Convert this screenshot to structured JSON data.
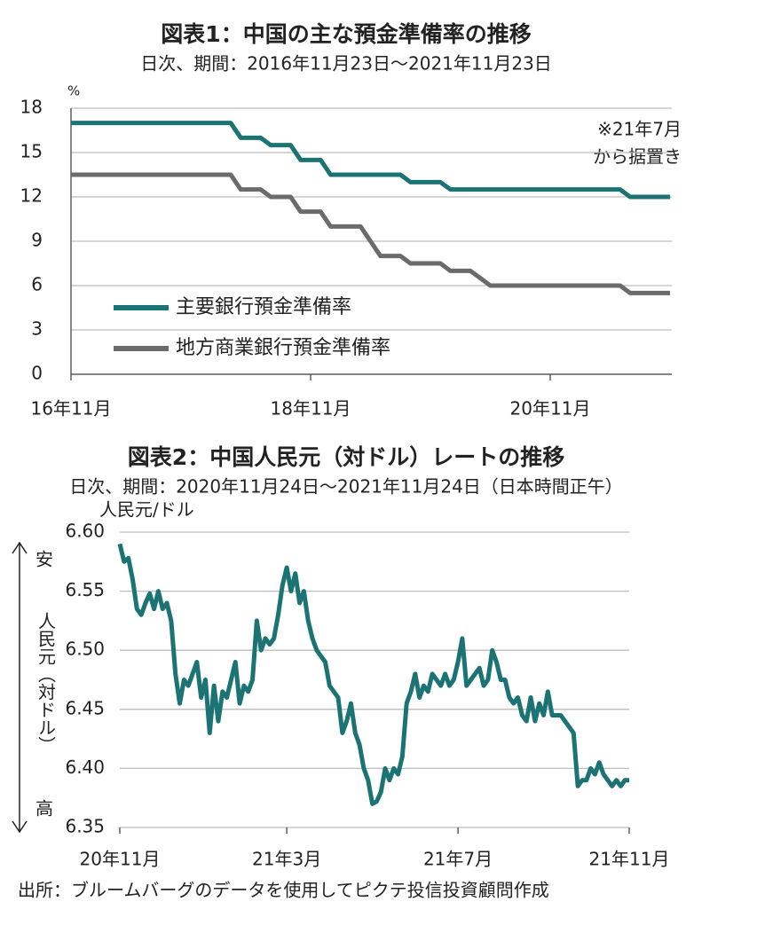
{
  "chart_data": [
    {
      "type": "line",
      "title": "図表1：中国の主な預金準備率の推移",
      "subtitle": "日次、期間：2016年11月23日～2021年11月23日",
      "unit": "%",
      "categories": [
        "16年11月",
        null,
        null,
        null,
        null,
        null,
        null,
        null,
        null,
        null,
        null,
        null,
        null,
        null,
        null,
        null,
        null,
        null,
        null,
        null,
        null,
        null,
        null,
        null,
        "18年11月",
        null,
        null,
        null,
        null,
        null,
        null,
        null,
        null,
        null,
        null,
        null,
        null,
        null,
        null,
        null,
        null,
        null,
        null,
        null,
        null,
        null,
        null,
        null,
        "20年11月",
        null,
        null,
        null,
        null,
        null,
        null,
        null,
        null,
        null,
        null,
        null,
        null
      ],
      "series": [
        {
          "name": "主要銀行預金準備率",
          "color": "#1b7373",
          "values": [
            17,
            17,
            17,
            17,
            17,
            17,
            17,
            17,
            17,
            17,
            17,
            17,
            17,
            17,
            17,
            17,
            17,
            16,
            16,
            16,
            15.5,
            15.5,
            15.5,
            14.5,
            14.5,
            14.5,
            13.5,
            13.5,
            13.5,
            13.5,
            13.5,
            13.5,
            13.5,
            13.5,
            13,
            13,
            13,
            13,
            12.5,
            12.5,
            12.5,
            12.5,
            12.5,
            12.5,
            12.5,
            12.5,
            12.5,
            12.5,
            12.5,
            12.5,
            12.5,
            12.5,
            12.5,
            12.5,
            12.5,
            12.5,
            12,
            12,
            12,
            12,
            12
          ]
        },
        {
          "name": "地方商業銀行預金準備率",
          "color": "#6b6b6b",
          "values": [
            13.5,
            13.5,
            13.5,
            13.5,
            13.5,
            13.5,
            13.5,
            13.5,
            13.5,
            13.5,
            13.5,
            13.5,
            13.5,
            13.5,
            13.5,
            13.5,
            13.5,
            12.5,
            12.5,
            12.5,
            12,
            12,
            12,
            11,
            11,
            11,
            10,
            10,
            10,
            10,
            9,
            8,
            8,
            8,
            7.5,
            7.5,
            7.5,
            7.5,
            7,
            7,
            7,
            6.5,
            6,
            6,
            6,
            6,
            6,
            6,
            6,
            6,
            6,
            6,
            6,
            6,
            6,
            6,
            5.5,
            5.5,
            5.5,
            5.5,
            5.5
          ]
        }
      ],
      "ylim": [
        0,
        18
      ],
      "yticks": [
        0,
        3,
        6,
        9,
        12,
        15,
        18
      ],
      "grid": true,
      "legend": "lower left",
      "annotation": [
        "※21年7月",
        "から据置き"
      ]
    },
    {
      "type": "line",
      "title": "図表2：中国人民元（対ドル）レートの推移",
      "subtitle": "日次、期間：2020年11月24日～2021年11月24日（日本時間正午）",
      "y_label": "人民元/ドル",
      "direction_labels": {
        "top": "安",
        "middle": "人民元（対ドル）",
        "bottom": "高"
      },
      "categories": [
        "20年11月",
        null,
        null,
        null,
        null,
        null,
        null,
        null,
        null,
        null,
        null,
        null,
        null,
        null,
        null,
        null,
        null,
        null,
        null,
        null,
        null,
        null,
        null,
        null,
        null,
        null,
        null,
        null,
        null,
        null,
        null,
        null,
        null,
        null,
        null,
        null,
        null,
        null,
        null,
        "21年3月",
        null,
        null,
        null,
        null,
        null,
        null,
        null,
        null,
        null,
        null,
        null,
        null,
        null,
        null,
        null,
        null,
        null,
        null,
        null,
        null,
        null,
        null,
        null,
        null,
        null,
        null,
        null,
        null,
        null,
        null,
        null,
        null,
        null,
        null,
        null,
        null,
        null,
        null,
        null,
        "21年7月",
        null,
        null,
        null,
        null,
        null,
        null,
        null,
        null,
        null,
        null,
        null,
        null,
        null,
        null,
        null,
        null,
        null,
        null,
        null,
        null,
        null,
        null,
        null,
        null,
        null,
        null,
        null,
        null,
        null,
        null,
        null,
        null,
        null,
        null,
        null,
        null,
        null,
        null,
        null,
        "21年11月"
      ],
      "series": [
        {
          "name": "人民元/ドル",
          "color": "#1b7373",
          "values": [
            6.59,
            6.575,
            6.578,
            6.56,
            6.535,
            6.53,
            6.54,
            6.548,
            6.535,
            6.55,
            6.535,
            6.54,
            6.525,
            6.48,
            6.455,
            6.475,
            6.47,
            6.48,
            6.49,
            6.46,
            6.475,
            6.43,
            6.47,
            6.44,
            6.465,
            6.46,
            6.475,
            6.49,
            6.455,
            6.47,
            6.465,
            6.475,
            6.525,
            6.5,
            6.51,
            6.505,
            6.51,
            6.53,
            6.555,
            6.57,
            6.55,
            6.565,
            6.54,
            6.55,
            6.525,
            6.51,
            6.5,
            6.495,
            6.49,
            6.47,
            6.465,
            6.46,
            6.43,
            6.44,
            6.455,
            6.43,
            6.42,
            6.4,
            6.39,
            6.37,
            6.372,
            6.38,
            6.4,
            6.39,
            6.4,
            6.395,
            6.41,
            6.455,
            6.465,
            6.48,
            6.46,
            6.47,
            6.465,
            6.48,
            6.475,
            6.47,
            6.48,
            6.47,
            6.475,
            6.49,
            6.51,
            6.47,
            6.475,
            6.48,
            6.485,
            6.47,
            6.475,
            6.5,
            6.49,
            6.475,
            6.475,
            6.46,
            6.455,
            6.46,
            6.445,
            6.44,
            6.46,
            6.44,
            6.455,
            6.445,
            6.465,
            6.445,
            6.445,
            6.445,
            6.44,
            6.435,
            6.43,
            6.385,
            6.39,
            6.39,
            6.4,
            6.395,
            6.405,
            6.395,
            6.39,
            6.385,
            6.39,
            6.385,
            6.39,
            6.39
          ]
        }
      ],
      "ylim": [
        6.35,
        6.6
      ],
      "yticks": [
        6.35,
        {
          "value": 6.4,
          "label": "6.40"
        },
        6.45,
        {
          "value": 6.5,
          "label": "6.50"
        },
        6.55,
        {
          "value": 6.6,
          "label": "6.60"
        }
      ],
      "grid": true
    }
  ],
  "source": "出所：ブルームバーグのデータを使用してピクテ投信投資顧問作成"
}
